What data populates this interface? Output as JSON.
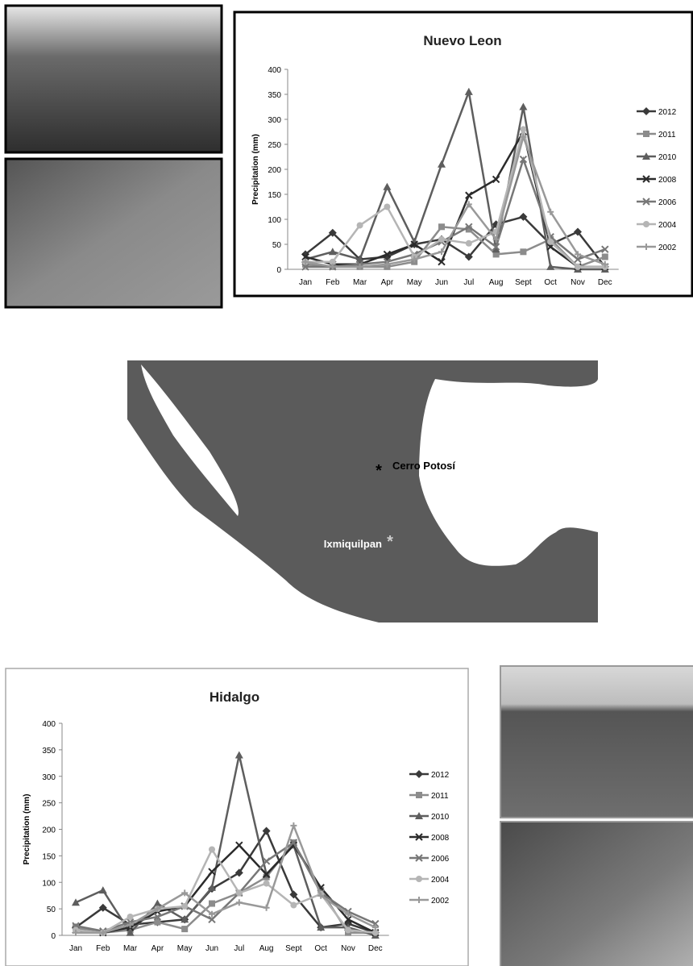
{
  "chart_data": [
    {
      "type": "line",
      "title": "Nuevo Leon",
      "y_label": "Precipitation (mm)",
      "categories": [
        "Jan",
        "Feb",
        "Mar",
        "Apr",
        "May",
        "Jun",
        "Jul",
        "Aug",
        "Sept",
        "Oct",
        "Nov",
        "Dec"
      ],
      "ylim": [
        0,
        400
      ],
      "yticks": [
        0,
        50,
        100,
        150,
        200,
        250,
        300,
        350,
        400
      ],
      "grid": false,
      "legend": "right",
      "series": [
        {
          "name": "2012",
          "color": "#3a3a3a",
          "marker": "diamond",
          "values": [
            30,
            73,
            20,
            25,
            50,
            60,
            25,
            90,
            105,
            50,
            75,
            5
          ]
        },
        {
          "name": "2011",
          "color": "#8c8c8c",
          "marker": "square",
          "values": [
            10,
            5,
            5,
            5,
            15,
            85,
            80,
            30,
            35,
            60,
            5,
            25
          ]
        },
        {
          "name": "2010",
          "color": "#5e5e5e",
          "marker": "triangle",
          "values": [
            20,
            35,
            20,
            165,
            55,
            210,
            355,
            40,
            325,
            5,
            0,
            0
          ]
        },
        {
          "name": "2008",
          "color": "#2b2b2b",
          "marker": "x",
          "values": [
            25,
            10,
            10,
            30,
            50,
            15,
            148,
            180,
            275,
            45,
            5,
            5
          ]
        },
        {
          "name": "2006",
          "color": "#777777",
          "marker": "x",
          "values": [
            5,
            5,
            10,
            15,
            30,
            55,
            85,
            45,
            220,
            65,
            20,
            40
          ]
        },
        {
          "name": "2004",
          "color": "#b5b5b5",
          "marker": "circle",
          "values": [
            15,
            15,
            88,
            125,
            25,
            60,
            52,
            75,
            280,
            55,
            5,
            5
          ]
        },
        {
          "name": "2002",
          "color": "#999999",
          "marker": "plus",
          "values": [
            15,
            5,
            5,
            10,
            20,
            35,
            130,
            60,
            265,
            115,
            30,
            10
          ]
        }
      ]
    },
    {
      "type": "line",
      "title": "Hidalgo",
      "y_label": "Precipitation (mm)",
      "categories": [
        "Jan",
        "Feb",
        "Mar",
        "Apr",
        "May",
        "Jun",
        "Jul",
        "Aug",
        "Sept",
        "Oct",
        "Nov",
        "Dec"
      ],
      "ylim": [
        0,
        400
      ],
      "yticks": [
        0,
        50,
        100,
        150,
        200,
        250,
        300,
        350,
        400
      ],
      "grid": false,
      "legend": "right",
      "series": [
        {
          "name": "2012",
          "color": "#3a3a3a",
          "marker": "diamond",
          "values": [
            15,
            52,
            20,
            25,
            30,
            88,
            118,
            197,
            77,
            15,
            22,
            5
          ]
        },
        {
          "name": "2011",
          "color": "#8c8c8c",
          "marker": "square",
          "values": [
            15,
            5,
            10,
            25,
            12,
            60,
            80,
            110,
            175,
            85,
            5,
            5
          ]
        },
        {
          "name": "2010",
          "color": "#5e5e5e",
          "marker": "triangle",
          "values": [
            62,
            85,
            5,
            60,
            30,
            90,
            340,
            115,
            170,
            15,
            15,
            0
          ]
        },
        {
          "name": "2008",
          "color": "#2b2b2b",
          "marker": "x",
          "values": [
            10,
            5,
            15,
            45,
            55,
            120,
            170,
            115,
            170,
            90,
            30,
            5
          ]
        },
        {
          "name": "2006",
          "color": "#777777",
          "marker": "x",
          "values": [
            18,
            8,
            25,
            35,
            55,
            30,
            80,
            140,
            175,
            80,
            45,
            22
          ]
        },
        {
          "name": "2004",
          "color": "#b5b5b5",
          "marker": "circle",
          "values": [
            10,
            5,
            35,
            50,
            55,
            162,
            80,
            98,
            57,
            78,
            10,
            5
          ]
        },
        {
          "name": "2002",
          "color": "#999999",
          "marker": "plus",
          "values": [
            5,
            5,
            20,
            50,
            80,
            40,
            62,
            52,
            207,
            75,
            40,
            15
          ]
        }
      ]
    }
  ],
  "map": {
    "labels": [
      "Cerro Potosí",
      "Ixmiquilpan"
    ]
  }
}
